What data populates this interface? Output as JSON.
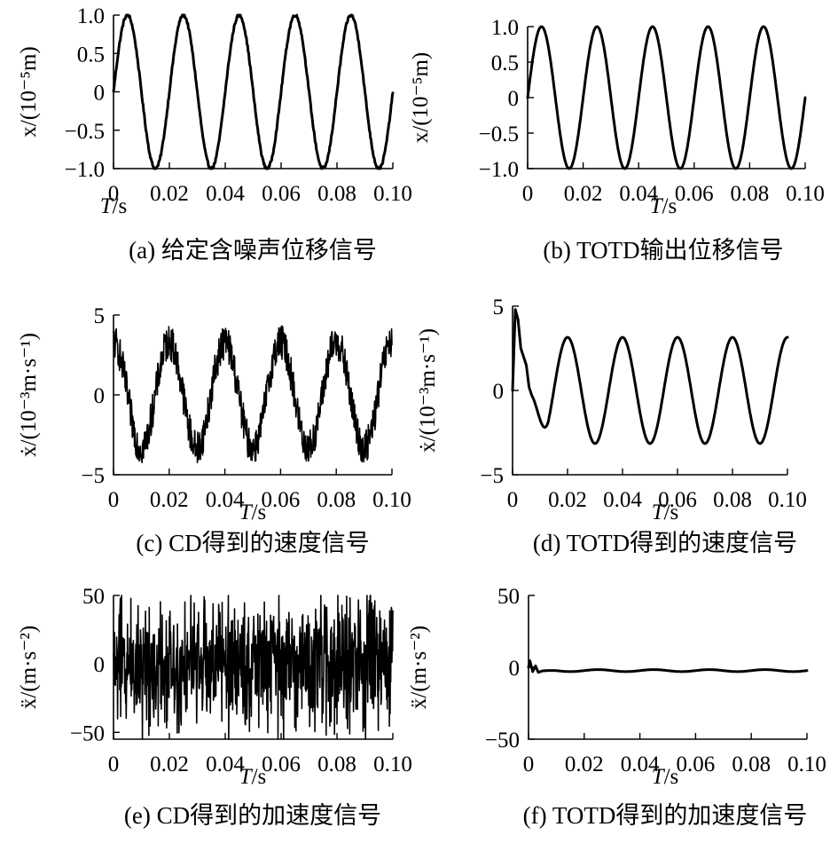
{
  "chart_data": [
    {
      "panel": "a",
      "type": "line",
      "caption": "(a) 给定含噪声位移信号",
      "ylabel": "x/(10⁻⁵m)",
      "xlabel": "T/s",
      "x_ticks": [
        "0",
        "0.02",
        "0.04",
        "0.06",
        "0.08",
        "0.10"
      ],
      "y_ticks": [
        "1.0",
        "0.5",
        "0",
        "−0.5",
        "−1.0"
      ],
      "xlim": [
        0,
        0.1
      ],
      "ylim": [
        -1.0,
        1.0
      ],
      "grid": false,
      "signal": {
        "shape": "sine",
        "amplitude": 1.0,
        "frequency_hz": 50,
        "phase": 0,
        "offset": 0,
        "noise_amplitude": 0.02
      }
    },
    {
      "panel": "b",
      "type": "line",
      "caption": "(b) TOTD输出位移信号",
      "ylabel": "x/(10⁻⁵m)",
      "xlabel": "T/s",
      "x_ticks": [
        "0",
        "0.02",
        "0.04",
        "0.06",
        "0.08",
        "0.10"
      ],
      "y_ticks": [
        "1.0",
        "0.5",
        "0",
        "−0.5",
        "−1.0"
      ],
      "xlim": [
        0,
        0.1
      ],
      "ylim": [
        -1.0,
        1.0
      ],
      "grid": false,
      "signal": {
        "shape": "sine",
        "amplitude": 1.0,
        "frequency_hz": 50,
        "phase": 0,
        "offset": 0,
        "noise_amplitude": 0
      }
    },
    {
      "panel": "c",
      "type": "line",
      "caption": "(c) CD得到的速度信号",
      "ylabel": "ẋ/(10⁻³m·s⁻¹)",
      "xlabel": "T/s",
      "x_ticks": [
        "0",
        "0.02",
        "0.04",
        "0.06",
        "0.08",
        "0.10"
      ],
      "y_ticks": [
        "5",
        "0",
        "−5"
      ],
      "xlim": [
        0,
        0.1
      ],
      "ylim": [
        -5,
        5
      ],
      "grid": false,
      "signal": {
        "shape": "cosine",
        "amplitude": 3.3,
        "frequency_hz": 50,
        "phase": 0,
        "offset": 0,
        "noise_amplitude": 1.1
      }
    },
    {
      "panel": "d",
      "type": "line",
      "caption": "(d) TOTD得到的速度信号",
      "ylabel": "ẋ/(10⁻³m·s⁻¹)",
      "xlabel": "T/s",
      "x_ticks": [
        "0",
        "0.02",
        "0.04",
        "0.06",
        "0.08",
        "0.10"
      ],
      "y_ticks": [
        "5",
        "0",
        "−5"
      ],
      "xlim": [
        0,
        0.1
      ],
      "ylim": [
        -5,
        5
      ],
      "grid": false,
      "signal": {
        "shape": "cosine",
        "amplitude": 3.15,
        "frequency_hz": 50,
        "phase": 0,
        "offset": 0,
        "noise_amplitude": 0
      },
      "transient": [
        [
          0,
          0
        ],
        [
          0.001,
          4.8
        ],
        [
          0.002,
          4.2
        ],
        [
          0.003,
          2.5
        ],
        [
          0.004,
          2.0
        ],
        [
          0.005,
          1.5
        ],
        [
          0.006,
          0.2
        ],
        [
          0.007,
          -0.3
        ]
      ]
    },
    {
      "panel": "e",
      "type": "line",
      "caption": "(e) CD得到的加速度信号",
      "ylabel": "ẍ/(m·s⁻²)",
      "xlabel": "T/s",
      "x_ticks": [
        "0",
        "0.02",
        "0.04",
        "0.06",
        "0.08",
        "0.10"
      ],
      "y_ticks": [
        "50",
        "0",
        "−50"
      ],
      "xlim": [
        0,
        0.1
      ],
      "ylim": [
        -55,
        50
      ],
      "grid": false,
      "signal": {
        "shape": "noise",
        "amplitude": 0,
        "frequency_hz": 50,
        "phase": 0,
        "offset": 0,
        "noise_amplitude": 48
      }
    },
    {
      "panel": "f",
      "type": "line",
      "caption": "(f) TOTD得到的加速度信号",
      "ylabel": "ẍ/(m·s⁻²)",
      "xlabel": "T/s",
      "x_ticks": [
        "0",
        "0.02",
        "0.04",
        "0.06",
        "0.08",
        "0.10"
      ],
      "y_ticks": [
        "50",
        "0",
        "−50"
      ],
      "xlim": [
        0,
        0.1
      ],
      "ylim": [
        -50,
        50
      ],
      "grid": false,
      "signal": {
        "shape": "sine",
        "amplitude": 0.7,
        "frequency_hz": 50,
        "phase": 0,
        "offset": -2.3,
        "noise_amplitude": 0
      },
      "transient": [
        [
          0,
          0
        ],
        [
          0.0005,
          4.5
        ],
        [
          0.0015,
          -3
        ],
        [
          0.0025,
          1
        ],
        [
          0.0035,
          -3.5
        ],
        [
          0.005,
          -2.5
        ]
      ]
    }
  ]
}
